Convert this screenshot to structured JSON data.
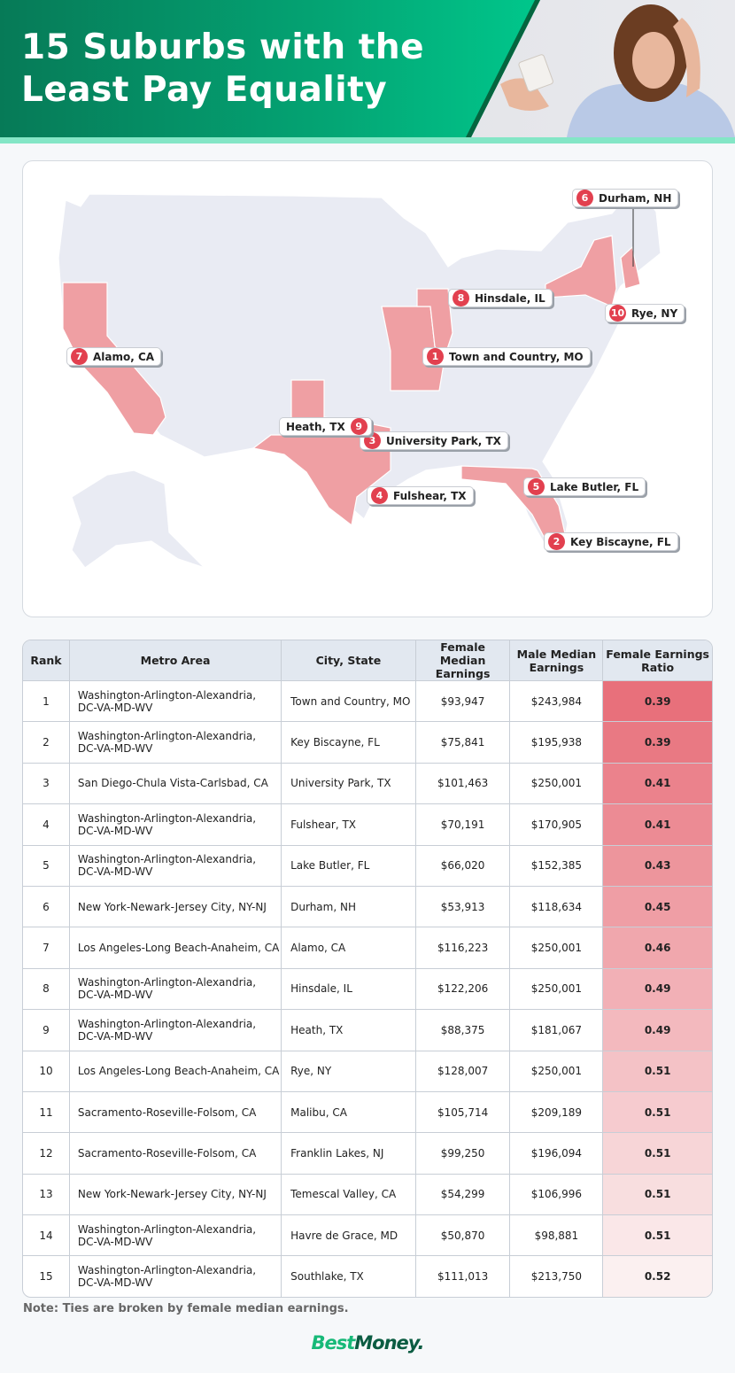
{
  "header": {
    "title_line1": "15 Suburbs with the",
    "title_line2": "Least Pay Equality"
  },
  "colors": {
    "highlight_state": "#ef9fa3",
    "state": "#e9ebf3",
    "pin": "#e2404f",
    "ratio_high": "#e8707b",
    "ratio_low": "#fbf0f0",
    "brand_green": "#00c08a"
  },
  "map": {
    "highlighted_states": [
      "CA",
      "TX",
      "MO",
      "IL",
      "NY",
      "NH",
      "FL"
    ],
    "pins": [
      {
        "rank": "1",
        "label": "Town and Country, MO"
      },
      {
        "rank": "2",
        "label": "Key Biscayne, FL"
      },
      {
        "rank": "3",
        "label": "University Park, TX"
      },
      {
        "rank": "4",
        "label": "Fulshear, TX"
      },
      {
        "rank": "5",
        "label": "Lake Butler, FL"
      },
      {
        "rank": "6",
        "label": "Durham, NH"
      },
      {
        "rank": "7",
        "label": "Alamo, CA"
      },
      {
        "rank": "8",
        "label": "Hinsdale, IL"
      },
      {
        "rank": "9",
        "label": "Heath, TX"
      },
      {
        "rank": "10",
        "label": "Rye, NY"
      }
    ]
  },
  "table": {
    "headers": [
      "Rank",
      "Metro Area",
      "City, State",
      "Female Median Earnings",
      "Male Median Earnings",
      "Female Earnings Ratio"
    ],
    "rows": [
      [
        "1",
        "Washington-Arlington-Alexandria, DC-VA-MD-WV",
        "Town and Country, MO",
        "$93,947",
        "$243,984",
        "0.39"
      ],
      [
        "2",
        "Washington-Arlington-Alexandria, DC-VA-MD-WV",
        "Key Biscayne, FL",
        "$75,841",
        "$195,938",
        "0.39"
      ],
      [
        "3",
        "San Diego-Chula Vista-Carlsbad, CA",
        "University Park, TX",
        "$101,463",
        "$250,001",
        "0.41"
      ],
      [
        "4",
        "Washington-Arlington-Alexandria, DC-VA-MD-WV",
        "Fulshear, TX",
        "$70,191",
        "$170,905",
        "0.41"
      ],
      [
        "5",
        "Washington-Arlington-Alexandria, DC-VA-MD-WV",
        "Lake Butler, FL",
        "$66,020",
        "$152,385",
        "0.43"
      ],
      [
        "6",
        "New York-Newark-Jersey City, NY-NJ",
        "Durham, NH",
        "$53,913",
        "$118,634",
        "0.45"
      ],
      [
        "7",
        "Los Angeles-Long Beach-Anaheim, CA",
        "Alamo, CA",
        "$116,223",
        "$250,001",
        "0.46"
      ],
      [
        "8",
        "Washington-Arlington-Alexandria, DC-VA-MD-WV",
        "Hinsdale, IL",
        "$122,206",
        "$250,001",
        "0.49"
      ],
      [
        "9",
        "Washington-Arlington-Alexandria, DC-VA-MD-WV",
        "Heath, TX",
        "$88,375",
        "$181,067",
        "0.49"
      ],
      [
        "10",
        "Los Angeles-Long Beach-Anaheim, CA",
        "Rye, NY",
        "$128,007",
        "$250,001",
        "0.51"
      ],
      [
        "11",
        "Sacramento-Roseville-Folsom, CA",
        "Malibu, CA",
        "$105,714",
        "$209,189",
        "0.51"
      ],
      [
        "12",
        "Sacramento-Roseville-Folsom, CA",
        "Franklin Lakes, NJ",
        "$99,250",
        "$196,094",
        "0.51"
      ],
      [
        "13",
        "New York-Newark-Jersey City, NY-NJ",
        "Temescal Valley, CA",
        "$54,299",
        "$106,996",
        "0.51"
      ],
      [
        "14",
        "Washington-Arlington-Alexandria, DC-VA-MD-WV",
        "Havre de Grace, MD",
        "$50,870",
        "$98,881",
        "0.51"
      ],
      [
        "15",
        "Washington-Arlington-Alexandria, DC-VA-MD-WV",
        "Southlake, TX",
        "$111,013",
        "$213,750",
        "0.52"
      ]
    ]
  },
  "note": "Note: Ties are broken by female median earnings.",
  "logo": {
    "part1": "Best",
    "part2": "Money."
  }
}
